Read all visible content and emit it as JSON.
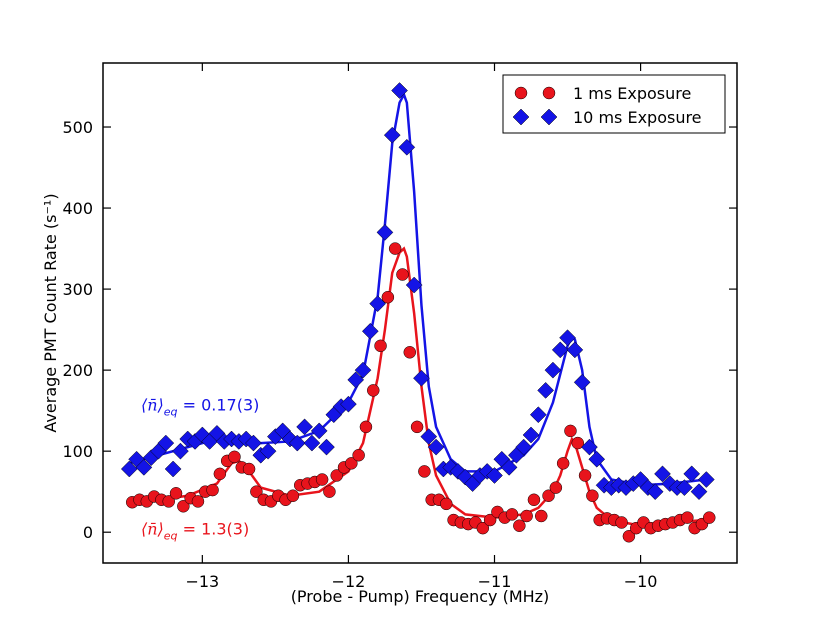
{
  "chart_data": {
    "type": "scatter",
    "xlabel": "(Probe - Pump) Frequency (MHz)",
    "ylabel": "Average PMT Count Rate (s⁻¹)",
    "xlim": [
      -13.68,
      -9.34
    ],
    "ylim": [
      -38,
      579
    ],
    "xticks": [
      {
        "value": -13,
        "label": "−13"
      },
      {
        "value": -12,
        "label": "−12"
      },
      {
        "value": -11,
        "label": "−11"
      },
      {
        "value": -10,
        "label": "−10"
      }
    ],
    "yticks": [
      0,
      100,
      200,
      300,
      400,
      500
    ],
    "legend": "upper right",
    "series": [
      {
        "name": "1 ms Exposure",
        "color": "#e8141c",
        "marker": "circle",
        "x": [
          -13.48,
          -13.43,
          -13.38,
          -13.33,
          -13.28,
          -13.23,
          -13.18,
          -13.13,
          -13.08,
          -13.03,
          -12.98,
          -12.93,
          -12.88,
          -12.83,
          -12.78,
          -12.73,
          -12.68,
          -12.63,
          -12.58,
          -12.53,
          -12.48,
          -12.43,
          -12.38,
          -12.33,
          -12.28,
          -12.23,
          -12.18,
          -12.13,
          -12.08,
          -12.03,
          -11.98,
          -11.93,
          -11.88,
          -11.83,
          -11.78,
          -11.73,
          -11.68,
          -11.63,
          -11.58,
          -11.53,
          -11.48,
          -11.43,
          -11.38,
          -11.33,
          -11.28,
          -11.23,
          -11.18,
          -11.13,
          -11.08,
          -11.03,
          -10.98,
          -10.93,
          -10.88,
          -10.83,
          -10.78,
          -10.73,
          -10.68,
          -10.63,
          -10.58,
          -10.53,
          -10.48,
          -10.43,
          -10.38,
          -10.33,
          -10.28,
          -10.23,
          -10.18,
          -10.13,
          -10.08,
          -10.03,
          -9.98,
          -9.93,
          -9.88,
          -9.83,
          -9.78,
          -9.73,
          -9.68,
          -9.63,
          -9.58,
          -9.53
        ],
        "values": [
          37,
          40,
          38,
          44,
          40,
          38,
          48,
          32,
          42,
          38,
          50,
          52,
          72,
          88,
          93,
          80,
          78,
          50,
          40,
          38,
          45,
          40,
          45,
          58,
          60,
          62,
          65,
          50,
          70,
          80,
          85,
          95,
          130,
          175,
          230,
          290,
          350,
          318,
          222,
          130,
          75,
          40,
          40,
          35,
          15,
          12,
          10,
          12,
          5,
          15,
          25,
          18,
          22,
          8,
          20,
          40,
          20,
          45,
          55,
          85,
          125,
          110,
          70,
          45,
          15,
          17,
          15,
          12,
          -5,
          5,
          12,
          5,
          8,
          10,
          12,
          15,
          18,
          5,
          10,
          18
        ]
      },
      {
        "name": "10 ms Exposure",
        "color": "#1414e6",
        "marker": "diamond",
        "x": [
          -13.5,
          -13.45,
          -13.4,
          -13.35,
          -13.3,
          -13.25,
          -13.2,
          -13.15,
          -13.1,
          -13.05,
          -13,
          -12.95,
          -12.9,
          -12.85,
          -12.8,
          -12.75,
          -12.7,
          -12.65,
          -12.6,
          -12.55,
          -12.5,
          -12.45,
          -12.4,
          -12.35,
          -12.3,
          -12.25,
          -12.2,
          -12.15,
          -12.1,
          -12.05,
          -12,
          -11.95,
          -11.9,
          -11.85,
          -11.8,
          -11.75,
          -11.7,
          -11.65,
          -11.6,
          -11.55,
          -11.5,
          -11.45,
          -11.4,
          -11.35,
          -11.3,
          -11.25,
          -11.2,
          -11.15,
          -11.1,
          -11.05,
          -11,
          -10.95,
          -10.9,
          -10.85,
          -10.8,
          -10.75,
          -10.7,
          -10.65,
          -10.6,
          -10.55,
          -10.5,
          -10.45,
          -10.4,
          -10.35,
          -10.3,
          -10.25,
          -10.2,
          -10.15,
          -10.1,
          -10.05,
          -10,
          -9.95,
          -9.9,
          -9.85,
          -9.8,
          -9.75,
          -9.7,
          -9.65,
          -9.6,
          -9.55
        ],
        "values": [
          78,
          90,
          80,
          92,
          100,
          110,
          78,
          100,
          115,
          112,
          120,
          112,
          122,
          112,
          115,
          112,
          115,
          110,
          95,
          100,
          118,
          125,
          115,
          110,
          130,
          110,
          125,
          105,
          145,
          155,
          158,
          188,
          200,
          248,
          282,
          370,
          490,
          545,
          475,
          305,
          190,
          118,
          105,
          78,
          80,
          75,
          68,
          60,
          70,
          75,
          70,
          90,
          80,
          95,
          105,
          120,
          145,
          175,
          200,
          225,
          240,
          225,
          185,
          105,
          90,
          58,
          55,
          58,
          55,
          60,
          65,
          55,
          50,
          72,
          60,
          55,
          55,
          72,
          50,
          65
        ]
      }
    ],
    "fits": {
      "x": [
        -13.5,
        -13.3,
        -13.1,
        -12.9,
        -12.8,
        -12.75,
        -12.7,
        -12.6,
        -12.4,
        -12.2,
        -12.0,
        -11.9,
        -11.8,
        -11.75,
        -11.7,
        -11.65,
        -11.62,
        -11.6,
        -11.55,
        -11.5,
        -11.45,
        -11.4,
        -11.3,
        -11.2,
        -11.0,
        -10.8,
        -10.7,
        -10.6,
        -10.55,
        -10.5,
        -10.47,
        -10.45,
        -10.4,
        -10.35,
        -10.3,
        -10.2,
        -10.0,
        -9.8,
        -9.55
      ],
      "curves": [
        {
          "color": "#e8141c",
          "values": [
            38,
            40,
            45,
            60,
            85,
            88,
            80,
            55,
            45,
            50,
            75,
            110,
            190,
            250,
            320,
            345,
            350,
            340,
            270,
            180,
            110,
            70,
            35,
            22,
            18,
            22,
            30,
            50,
            70,
            100,
            115,
            110,
            80,
            50,
            30,
            15,
            8,
            12,
            15
          ]
        },
        {
          "color": "#1414e6",
          "values": [
            85,
            95,
            105,
            115,
            115,
            114,
            112,
            110,
            112,
            125,
            160,
            195,
            290,
            380,
            480,
            530,
            540,
            530,
            420,
            280,
            180,
            130,
            90,
            75,
            75,
            95,
            115,
            160,
            195,
            230,
            240,
            238,
            200,
            130,
            90,
            65,
            58,
            60,
            65
          ]
        }
      ]
    },
    "annotations": [
      {
        "symbol": "⟨n̄⟩",
        "sub": "eq",
        "text": " = 0.17(3)",
        "color": "#1414e6",
        "x": -13.42,
        "y": 150
      },
      {
        "symbol": "⟨n̄⟩",
        "sub": "eq",
        "text": " = 1.3(3)",
        "color": "#e8141c",
        "x": -13.42,
        "y": -3
      }
    ]
  }
}
